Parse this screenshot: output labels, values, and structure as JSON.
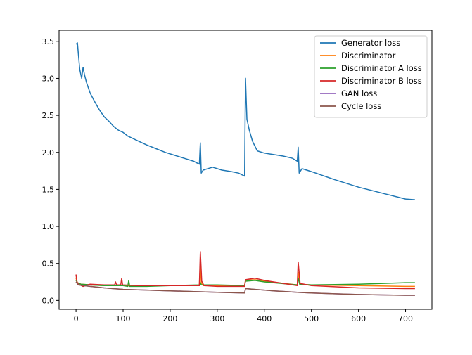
{
  "chart_data": {
    "type": "line",
    "title": "",
    "xlabel": "",
    "ylabel": "",
    "xlim": [
      -36,
      756
    ],
    "ylim": [
      -0.12,
      3.65
    ],
    "xticks": [
      0,
      100,
      200,
      300,
      400,
      500,
      600,
      700
    ],
    "yticks": [
      0.0,
      0.5,
      1.0,
      1.5,
      2.0,
      2.5,
      3.0,
      3.5
    ],
    "xtick_labels": [
      "0",
      "100",
      "200",
      "300",
      "400",
      "500",
      "600",
      "700"
    ],
    "ytick_labels": [
      "0.0",
      "0.5",
      "1.0",
      "1.5",
      "2.0",
      "2.5",
      "3.0",
      "3.5"
    ],
    "grid": false,
    "legend_position": "top-right",
    "series": [
      {
        "name": "Generator loss",
        "color": "#1f77b4",
        "x": [
          0,
          3,
          5,
          8,
          12,
          15,
          18,
          22,
          30,
          40,
          50,
          60,
          70,
          80,
          90,
          100,
          110,
          130,
          150,
          170,
          190,
          210,
          230,
          250,
          262,
          264,
          266,
          270,
          290,
          310,
          330,
          345,
          358,
          360,
          363,
          368,
          375,
          385,
          400,
          420,
          440,
          460,
          470,
          472,
          474,
          480,
          500,
          550,
          600,
          650,
          700,
          720
        ],
        "y": [
          3.46,
          3.48,
          3.33,
          3.12,
          3.0,
          3.15,
          3.05,
          2.95,
          2.8,
          2.68,
          2.57,
          2.48,
          2.42,
          2.35,
          2.3,
          2.27,
          2.22,
          2.16,
          2.1,
          2.05,
          2.0,
          1.96,
          1.92,
          1.88,
          1.84,
          2.13,
          1.72,
          1.76,
          1.8,
          1.76,
          1.74,
          1.72,
          1.68,
          3.0,
          2.45,
          2.3,
          2.15,
          2.02,
          1.99,
          1.97,
          1.95,
          1.92,
          1.88,
          2.07,
          1.72,
          1.78,
          1.74,
          1.63,
          1.53,
          1.45,
          1.37,
          1.36
        ]
      },
      {
        "name": "Discriminator",
        "color": "#ff7f0e",
        "x": [
          0,
          3,
          10,
          30,
          60,
          100,
          150,
          200,
          262,
          264,
          266,
          270,
          300,
          358,
          360,
          380,
          400,
          470,
          472,
          475,
          500,
          600,
          700,
          720
        ],
        "y": [
          0.3,
          0.24,
          0.22,
          0.21,
          0.2,
          0.2,
          0.2,
          0.2,
          0.2,
          0.5,
          0.24,
          0.2,
          0.2,
          0.2,
          0.27,
          0.28,
          0.26,
          0.21,
          0.38,
          0.22,
          0.21,
          0.2,
          0.19,
          0.19
        ]
      },
      {
        "name": "Discriminator A loss",
        "color": "#2ca02c",
        "x": [
          0,
          3,
          10,
          30,
          60,
          100,
          110,
          112,
          114,
          150,
          200,
          262,
          264,
          266,
          300,
          358,
          360,
          380,
          400,
          470,
          472,
          475,
          500,
          600,
          700,
          720
        ],
        "y": [
          0.27,
          0.24,
          0.22,
          0.21,
          0.2,
          0.2,
          0.19,
          0.27,
          0.19,
          0.19,
          0.2,
          0.21,
          0.24,
          0.21,
          0.21,
          0.2,
          0.26,
          0.27,
          0.25,
          0.21,
          0.3,
          0.22,
          0.21,
          0.22,
          0.24,
          0.24
        ]
      },
      {
        "name": "Discriminator B loss",
        "color": "#d62728",
        "x": [
          0,
          2,
          5,
          15,
          30,
          60,
          82,
          84,
          86,
          95,
          97,
          99,
          130,
          200,
          262,
          264,
          267,
          272,
          300,
          358,
          360,
          380,
          400,
          470,
          472,
          476,
          500,
          600,
          700,
          720
        ],
        "y": [
          0.35,
          0.25,
          0.22,
          0.19,
          0.22,
          0.21,
          0.21,
          0.25,
          0.21,
          0.21,
          0.3,
          0.21,
          0.2,
          0.2,
          0.2,
          0.66,
          0.26,
          0.2,
          0.19,
          0.19,
          0.28,
          0.3,
          0.27,
          0.2,
          0.52,
          0.23,
          0.2,
          0.17,
          0.16,
          0.16
        ]
      },
      {
        "name": "GAN loss",
        "color": "#9467bd",
        "x": [
          0,
          5,
          30,
          60,
          100,
          150,
          200,
          250,
          300,
          358,
          360,
          380,
          420,
          470,
          500,
          550,
          600,
          650,
          700,
          720
        ],
        "y": [
          0.25,
          0.21,
          0.19,
          0.17,
          0.15,
          0.14,
          0.13,
          0.12,
          0.11,
          0.1,
          0.16,
          0.15,
          0.13,
          0.11,
          0.1,
          0.09,
          0.08,
          0.075,
          0.07,
          0.07
        ]
      },
      {
        "name": "Cycle loss",
        "color": "#8c564b",
        "x": [
          0,
          5,
          30,
          60,
          100,
          150,
          200,
          250,
          300,
          358,
          360,
          380,
          420,
          470,
          500,
          550,
          600,
          650,
          700,
          720
        ],
        "y": [
          0.25,
          0.21,
          0.19,
          0.17,
          0.15,
          0.14,
          0.13,
          0.12,
          0.11,
          0.1,
          0.16,
          0.15,
          0.13,
          0.11,
          0.1,
          0.09,
          0.08,
          0.075,
          0.07,
          0.07
        ]
      }
    ]
  }
}
